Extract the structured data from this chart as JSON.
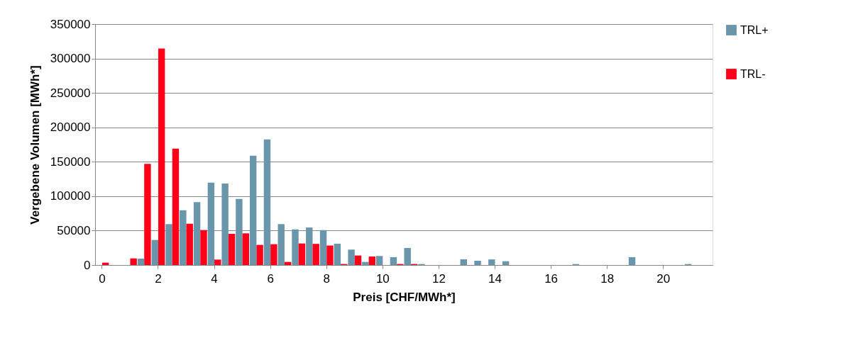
{
  "chart_data": {
    "type": "bar",
    "xlabel": "Preis [CHF/MWh*]",
    "ylabel": "Vergebene Volumen [MWh*]",
    "categories": [
      "0",
      null,
      null,
      null,
      "2",
      null,
      null,
      null,
      "4",
      null,
      null,
      null,
      "6",
      null,
      null,
      null,
      "8",
      null,
      null,
      null,
      "10",
      null,
      null,
      null,
      "12",
      null,
      null,
      null,
      "14",
      null,
      null,
      null,
      "16",
      null,
      null,
      null,
      "18",
      null,
      null,
      null,
      "20",
      null,
      null,
      null
    ],
    "series": [
      {
        "name": "TRL+",
        "color": "#6a96ab",
        "values": [
          null,
          null,
          null,
          9300,
          36400,
          59400,
          79600,
          91300,
          119700,
          118400,
          96100,
          158900,
          182500,
          59400,
          51800,
          54500,
          50700,
          31000,
          22400,
          4500,
          13100,
          11400,
          24800,
          1400,
          null,
          null,
          8300,
          6200,
          8100,
          5500,
          null,
          null,
          null,
          null,
          1400,
          null,
          null,
          null,
          11400,
          null,
          null,
          null,
          1400,
          null
        ]
      },
      {
        "name": "TRL-",
        "color": "#ff0019",
        "values": [
          3400,
          null,
          9600,
          147000,
          314600,
          169000,
          60000,
          50800,
          7900,
          45300,
          46000,
          29200,
          30200,
          4500,
          31300,
          30700,
          28300,
          1400,
          13800,
          12400,
          null,
          1400,
          1400,
          null,
          null,
          null,
          null,
          null,
          null,
          null,
          null,
          null,
          null,
          null,
          null,
          null,
          null,
          null,
          null,
          null,
          null,
          null,
          null,
          null
        ]
      }
    ],
    "ylim": [
      0,
      350000
    ],
    "yticks": [
      0,
      50000,
      100000,
      150000,
      200000,
      250000,
      300000,
      350000
    ],
    "grid": "y",
    "legend": "right"
  }
}
